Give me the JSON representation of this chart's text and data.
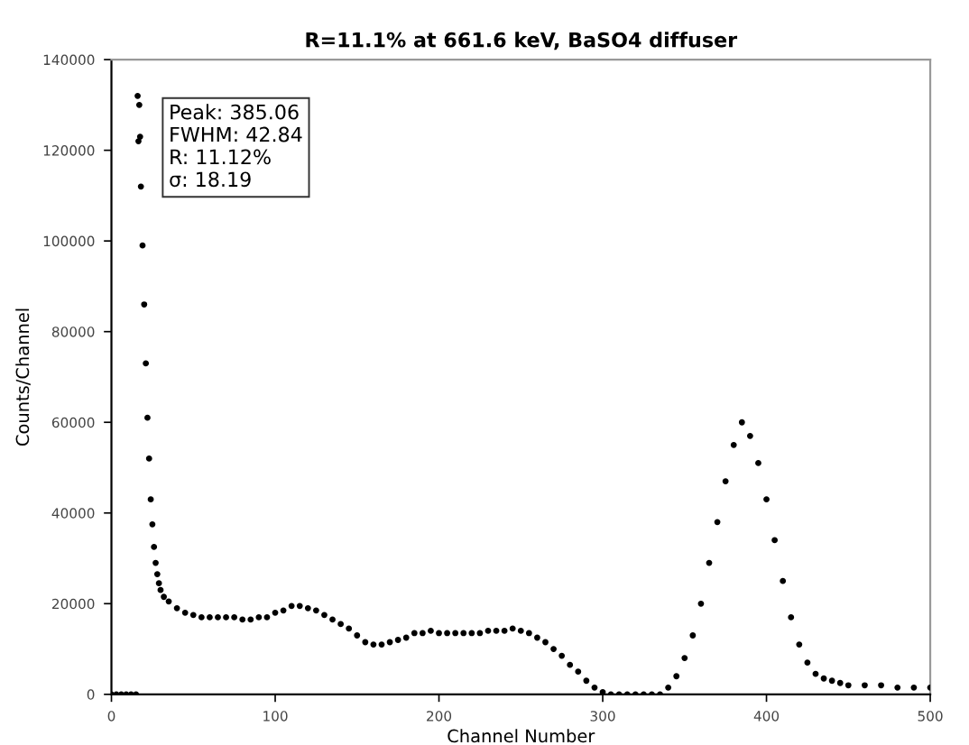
{
  "chart_data": {
    "type": "scatter",
    "title": "R=11.1% at 661.6 keV, BaSO4 diffuser",
    "xlabel": "Channel Number",
    "ylabel": "Counts/Channel",
    "annotations": [
      "Peak: 385.06",
      "FWHM: 42.84",
      "R: 11.12%",
      "σ: 18.19"
    ],
    "x": [
      0,
      3,
      6,
      9,
      12,
      15,
      16,
      17,
      16.5,
      17.5,
      18,
      19,
      20,
      21,
      22,
      23,
      24,
      25,
      26,
      27,
      28,
      29,
      30,
      32,
      35,
      40,
      45,
      50,
      55,
      60,
      65,
      70,
      75,
      80,
      85,
      90,
      95,
      100,
      105,
      110,
      115,
      120,
      125,
      130,
      135,
      140,
      145,
      150,
      155,
      160,
      165,
      170,
      175,
      180,
      185,
      190,
      195,
      200,
      205,
      210,
      215,
      220,
      225,
      230,
      235,
      240,
      245,
      250,
      255,
      260,
      265,
      270,
      275,
      280,
      285,
      290,
      295,
      300,
      305,
      310,
      315,
      320,
      325,
      330,
      335,
      340,
      345,
      350,
      355,
      360,
      365,
      370,
      375,
      380,
      385,
      390,
      395,
      400,
      405,
      410,
      415,
      420,
      425,
      430,
      435,
      440,
      445,
      450,
      460,
      470,
      480,
      490,
      500
    ],
    "values": [
      0,
      0,
      0,
      0,
      0,
      0,
      132000,
      130000,
      122000,
      123000,
      112000,
      99000,
      86000,
      73000,
      61000,
      52000,
      43000,
      37500,
      32500,
      29000,
      26500,
      24500,
      23000,
      21500,
      20500,
      19000,
      18000,
      17500,
      17000,
      17000,
      17000,
      17000,
      17000,
      16500,
      16500,
      17000,
      17000,
      18000,
      18500,
      19500,
      19500,
      19000,
      18500,
      17500,
      16500,
      15500,
      14500,
      13000,
      11500,
      11000,
      11000,
      11500,
      12000,
      12500,
      13500,
      13500,
      14000,
      13500,
      13500,
      13500,
      13500,
      13500,
      13500,
      14000,
      14000,
      14000,
      14500,
      14000,
      13500,
      12500,
      11500,
      10000,
      8500,
      6500,
      5000,
      3000,
      1500,
      500,
      0,
      0,
      0,
      0,
      0,
      0,
      0,
      1500,
      4000,
      8000,
      13000,
      20000,
      29000,
      38000,
      47000,
      55000,
      60000,
      57000,
      51000,
      43000,
      34000,
      25000,
      17000,
      11000,
      7000,
      4500,
      3500,
      3000,
      2500,
      2000,
      2000,
      2000,
      1500,
      1500,
      1500
    ],
    "color": "#000000",
    "marker": "circle",
    "xlim": [
      0,
      500
    ],
    "xticks": [
      0,
      100,
      200,
      300,
      400,
      500
    ],
    "ylim": [
      0,
      140000
    ],
    "yticks": [
      0,
      20000,
      40000,
      60000,
      80000,
      100000,
      120000,
      140000
    ],
    "grid": false,
    "legend": false
  }
}
